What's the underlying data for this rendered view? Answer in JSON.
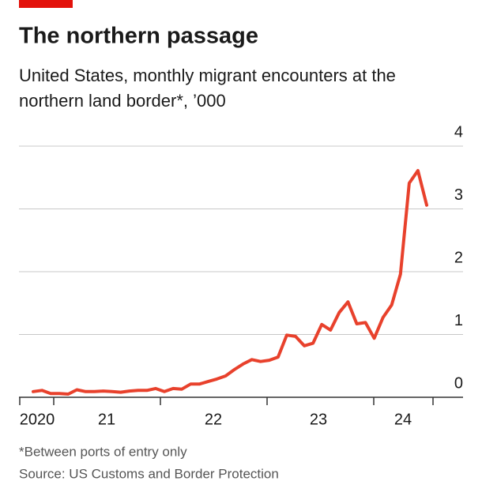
{
  "chart_data": {
    "type": "line",
    "title": "The northern passage",
    "subtitle": "United States, monthly migrant encounters at the northern land border*, ’000",
    "footnote": "*Between ports of entry only",
    "source": "Source: US Customs and Border Protection",
    "x_labels": [
      "2020",
      "21",
      "22",
      "23",
      "24"
    ],
    "categories": [
      null,
      null,
      null,
      null,
      null,
      null,
      null,
      null,
      null,
      null,
      null,
      null,
      null,
      null,
      null,
      null,
      null,
      null,
      null,
      null,
      null,
      null,
      null,
      null,
      null,
      null,
      null,
      null,
      null,
      null,
      null,
      null,
      null,
      null,
      null,
      null,
      null,
      null,
      null,
      null,
      null,
      null,
      null,
      null,
      null,
      null
    ],
    "series": [
      {
        "color": "#e8412c",
        "values": [
          0.09,
          0.11,
          0.06,
          0.06,
          0.05,
          0.12,
          0.09,
          0.09,
          0.1,
          0.09,
          0.08,
          0.1,
          0.11,
          0.11,
          0.14,
          0.09,
          0.14,
          0.13,
          0.21,
          0.21,
          0.25,
          0.29,
          0.34,
          0.44,
          0.53,
          0.6,
          0.57,
          0.59,
          0.64,
          0.99,
          0.97,
          0.82,
          0.86,
          1.16,
          1.07,
          1.35,
          1.52,
          1.17,
          1.19,
          0.94,
          1.27,
          1.47,
          1.96,
          3.41,
          3.61,
          3.06
        ]
      }
    ],
    "ylim": [
      0,
      4
    ],
    "yticks": [
      0,
      1,
      2,
      3,
      4
    ],
    "grid": true
  }
}
